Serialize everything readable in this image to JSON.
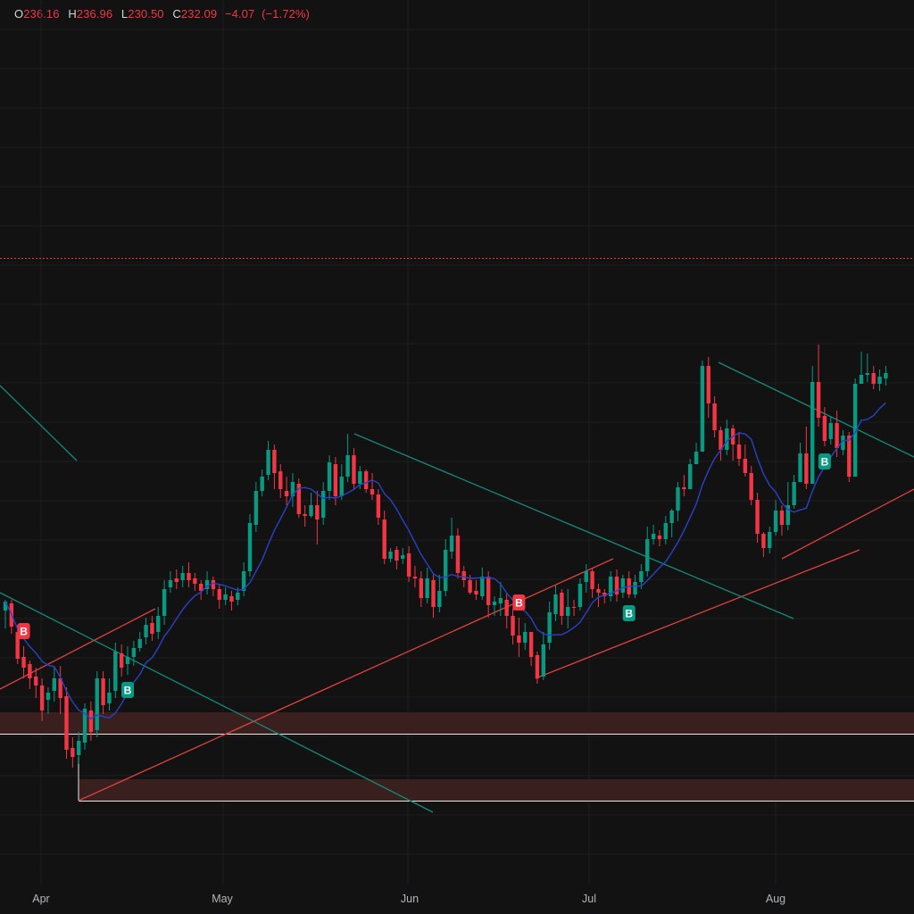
{
  "ohlc": {
    "open_label": "O",
    "open": "236.16",
    "high_label": "H",
    "high": "236.96",
    "low_label": "L",
    "low": "230.50",
    "close_label": "C",
    "close": "232.09",
    "change": "−4.07",
    "change_pct": "(−1.72%)"
  },
  "colors": {
    "background": "#121212",
    "grid": "#1f1f1f",
    "up": "#089981",
    "down": "#f23645",
    "ma": "#2942c8",
    "trend_red": "#e0413e",
    "trend_teal": "#138a7a",
    "zone_fill": "#3a1f1f",
    "zone_line": "#e8e8e8",
    "dotted_level": "#f23645"
  },
  "chart_data": {
    "type": "candlestick",
    "x_tick_labels": [
      "Apr",
      "May",
      "Jun",
      "Jul",
      "Aug"
    ],
    "ohlc_readout": {
      "open": 236.16,
      "high": 236.96,
      "low": 230.5,
      "close": 232.09,
      "change": -4.07,
      "change_pct": -1.72
    },
    "signal_markers": [
      {
        "label": "B",
        "color": "down",
        "index": 3
      },
      {
        "label": "B",
        "color": "up",
        "index": 20
      },
      {
        "label": "B",
        "color": "down",
        "index": 84
      },
      {
        "label": "B",
        "color": "up",
        "index": 102
      },
      {
        "label": "B",
        "color": "up",
        "index": 134
      }
    ],
    "candles": [
      [
        684,
        674,
        704,
        672
      ],
      [
        676,
        702,
        710,
        672
      ],
      [
        708,
        738,
        744,
        700
      ],
      [
        736,
        748,
        760,
        724
      ],
      [
        744,
        760,
        772,
        740
      ],
      [
        758,
        768,
        782,
        748
      ],
      [
        768,
        796,
        808,
        760
      ],
      [
        784,
        776,
        800,
        770
      ],
      [
        774,
        760,
        786,
        748
      ],
      [
        760,
        782,
        800,
        746
      ],
      [
        780,
        840,
        850,
        770
      ],
      [
        838,
        848,
        860,
        826
      ],
      [
        846,
        830,
        856,
        820
      ],
      [
        832,
        794,
        840,
        788
      ],
      [
        796,
        820,
        830,
        786
      ],
      [
        818,
        760,
        826,
        752
      ],
      [
        760,
        790,
        800,
        752
      ],
      [
        788,
        776,
        796,
        760
      ],
      [
        774,
        730,
        782,
        720
      ],
      [
        732,
        748,
        758,
        722
      ],
      [
        744,
        736,
        756,
        724
      ],
      [
        736,
        726,
        746,
        718
      ],
      [
        726,
        716,
        730,
        708
      ],
      [
        714,
        700,
        722,
        692
      ],
      [
        698,
        710,
        718,
        690
      ],
      [
        708,
        690,
        716,
        680
      ],
      [
        690,
        660,
        700,
        650
      ],
      [
        658,
        650,
        664,
        640
      ],
      [
        648,
        652,
        660,
        638
      ],
      [
        650,
        642,
        658,
        634
      ],
      [
        642,
        650,
        658,
        630
      ],
      [
        648,
        654,
        662,
        642
      ],
      [
        654,
        662,
        672,
        650
      ],
      [
        660,
        650,
        666,
        640
      ],
      [
        650,
        660,
        668,
        646
      ],
      [
        660,
        672,
        682,
        654
      ],
      [
        672,
        666,
        678,
        658
      ],
      [
        668,
        674,
        684,
        662
      ],
      [
        672,
        664,
        678,
        658
      ],
      [
        662,
        640,
        668,
        630
      ],
      [
        640,
        586,
        646,
        576
      ],
      [
        588,
        550,
        596,
        540
      ],
      [
        550,
        534,
        556,
        526
      ],
      [
        532,
        504,
        538,
        494
      ],
      [
        504,
        530,
        548,
        498
      ],
      [
        528,
        548,
        558,
        520
      ],
      [
        550,
        556,
        566,
        534
      ],
      [
        556,
        540,
        568,
        530
      ],
      [
        542,
        576,
        580,
        536
      ],
      [
        576,
        578,
        590,
        566
      ],
      [
        578,
        566,
        580,
        552
      ],
      [
        566,
        582,
        610,
        550
      ],
      [
        580,
        550,
        588,
        540
      ],
      [
        550,
        518,
        560,
        510
      ],
      [
        520,
        556,
        566,
        512
      ],
      [
        556,
        534,
        560,
        520
      ],
      [
        534,
        510,
        540,
        486
      ],
      [
        510,
        542,
        548,
        502
      ],
      [
        542,
        528,
        548,
        522
      ],
      [
        528,
        548,
        552,
        526
      ],
      [
        548,
        554,
        560,
        530
      ],
      [
        554,
        580,
        588,
        548
      ],
      [
        582,
        626,
        632,
        572
      ],
      [
        626,
        618,
        630,
        614
      ],
      [
        616,
        628,
        638,
        612
      ],
      [
        626,
        622,
        632,
        614
      ],
      [
        620,
        646,
        652,
        612
      ],
      [
        646,
        648,
        658,
        634
      ],
      [
        648,
        670,
        680,
        640
      ],
      [
        670,
        648,
        676,
        636
      ],
      [
        650,
        680,
        692,
        644
      ],
      [
        680,
        662,
        686,
        644
      ],
      [
        662,
        616,
        668,
        604
      ],
      [
        618,
        600,
        626,
        580
      ],
      [
        600,
        642,
        648,
        592
      ],
      [
        640,
        650,
        658,
        634
      ],
      [
        650,
        664,
        666,
        644
      ],
      [
        662,
        666,
        672,
        650
      ],
      [
        668,
        646,
        672,
        636
      ],
      [
        646,
        678,
        692,
        640
      ],
      [
        678,
        674,
        690,
        668
      ],
      [
        676,
        670,
        690,
        652
      ],
      [
        672,
        690,
        704,
        664
      ],
      [
        690,
        712,
        722,
        682
      ],
      [
        712,
        720,
        736,
        692
      ],
      [
        720,
        708,
        728,
        698
      ],
      [
        708,
        736,
        746,
        728
      ],
      [
        734,
        760,
        766,
        730
      ],
      [
        758,
        722,
        762,
        708
      ],
      [
        720,
        686,
        728,
        674
      ],
      [
        688,
        666,
        696,
        656
      ],
      [
        664,
        690,
        700,
        660
      ],
      [
        690,
        680,
        704,
        660
      ],
      [
        680,
        680,
        690,
        672
      ],
      [
        680,
        654,
        684,
        648
      ],
      [
        652,
        640,
        664,
        632
      ],
      [
        640,
        660,
        670,
        636
      ],
      [
        660,
        664,
        680,
        654
      ],
      [
        664,
        668,
        676,
        660
      ],
      [
        668,
        646,
        674,
        640
      ],
      [
        646,
        666,
        674,
        638
      ],
      [
        664,
        648,
        670,
        644
      ],
      [
        648,
        666,
        670,
        640
      ],
      [
        666,
        652,
        670,
        644
      ],
      [
        652,
        640,
        660,
        632
      ],
      [
        640,
        604,
        646,
        590
      ],
      [
        604,
        598,
        610,
        588
      ],
      [
        600,
        604,
        612,
        594
      ],
      [
        604,
        586,
        610,
        578
      ],
      [
        586,
        572,
        602,
        570
      ],
      [
        572,
        546,
        584,
        540
      ],
      [
        546,
        548,
        556,
        532
      ],
      [
        548,
        520,
        530,
        514
      ],
      [
        520,
        506,
        516,
        496
      ],
      [
        506,
        410,
        418,
        404
      ],
      [
        410,
        452,
        468,
        400
      ],
      [
        452,
        482,
        490,
        444
      ],
      [
        482,
        504,
        516,
        478
      ],
      [
        504,
        480,
        510,
        470
      ],
      [
        480,
        498,
        516,
        476
      ],
      [
        498,
        514,
        522,
        484
      ],
      [
        514,
        530,
        534,
        498
      ],
      [
        530,
        560,
        566,
        522
      ],
      [
        560,
        598,
        608,
        552
      ],
      [
        598,
        614,
        624,
        596
      ],
      [
        614,
        596,
        620,
        590
      ],
      [
        596,
        572,
        600,
        560
      ],
      [
        572,
        588,
        600,
        566
      ],
      [
        588,
        566,
        594,
        540
      ],
      [
        566,
        540,
        570,
        532
      ],
      [
        540,
        508,
        520,
        496
      ],
      [
        508,
        542,
        548,
        478
      ],
      [
        542,
        428,
        432,
        410
      ],
      [
        428,
        468,
        478,
        386
      ],
      [
        466,
        494,
        500,
        456
      ],
      [
        492,
        474,
        498,
        466
      ],
      [
        474,
        502,
        512,
        460
      ],
      [
        504,
        488,
        510,
        482
      ],
      [
        488,
        534,
        540,
        484
      ],
      [
        534,
        430,
        438,
        424
      ],
      [
        430,
        420,
        428,
        394
      ],
      [
        420,
        418,
        428,
        396
      ],
      [
        418,
        430,
        436,
        410
      ],
      [
        430,
        422,
        438,
        414
      ],
      [
        424,
        418,
        432,
        410
      ]
    ]
  }
}
